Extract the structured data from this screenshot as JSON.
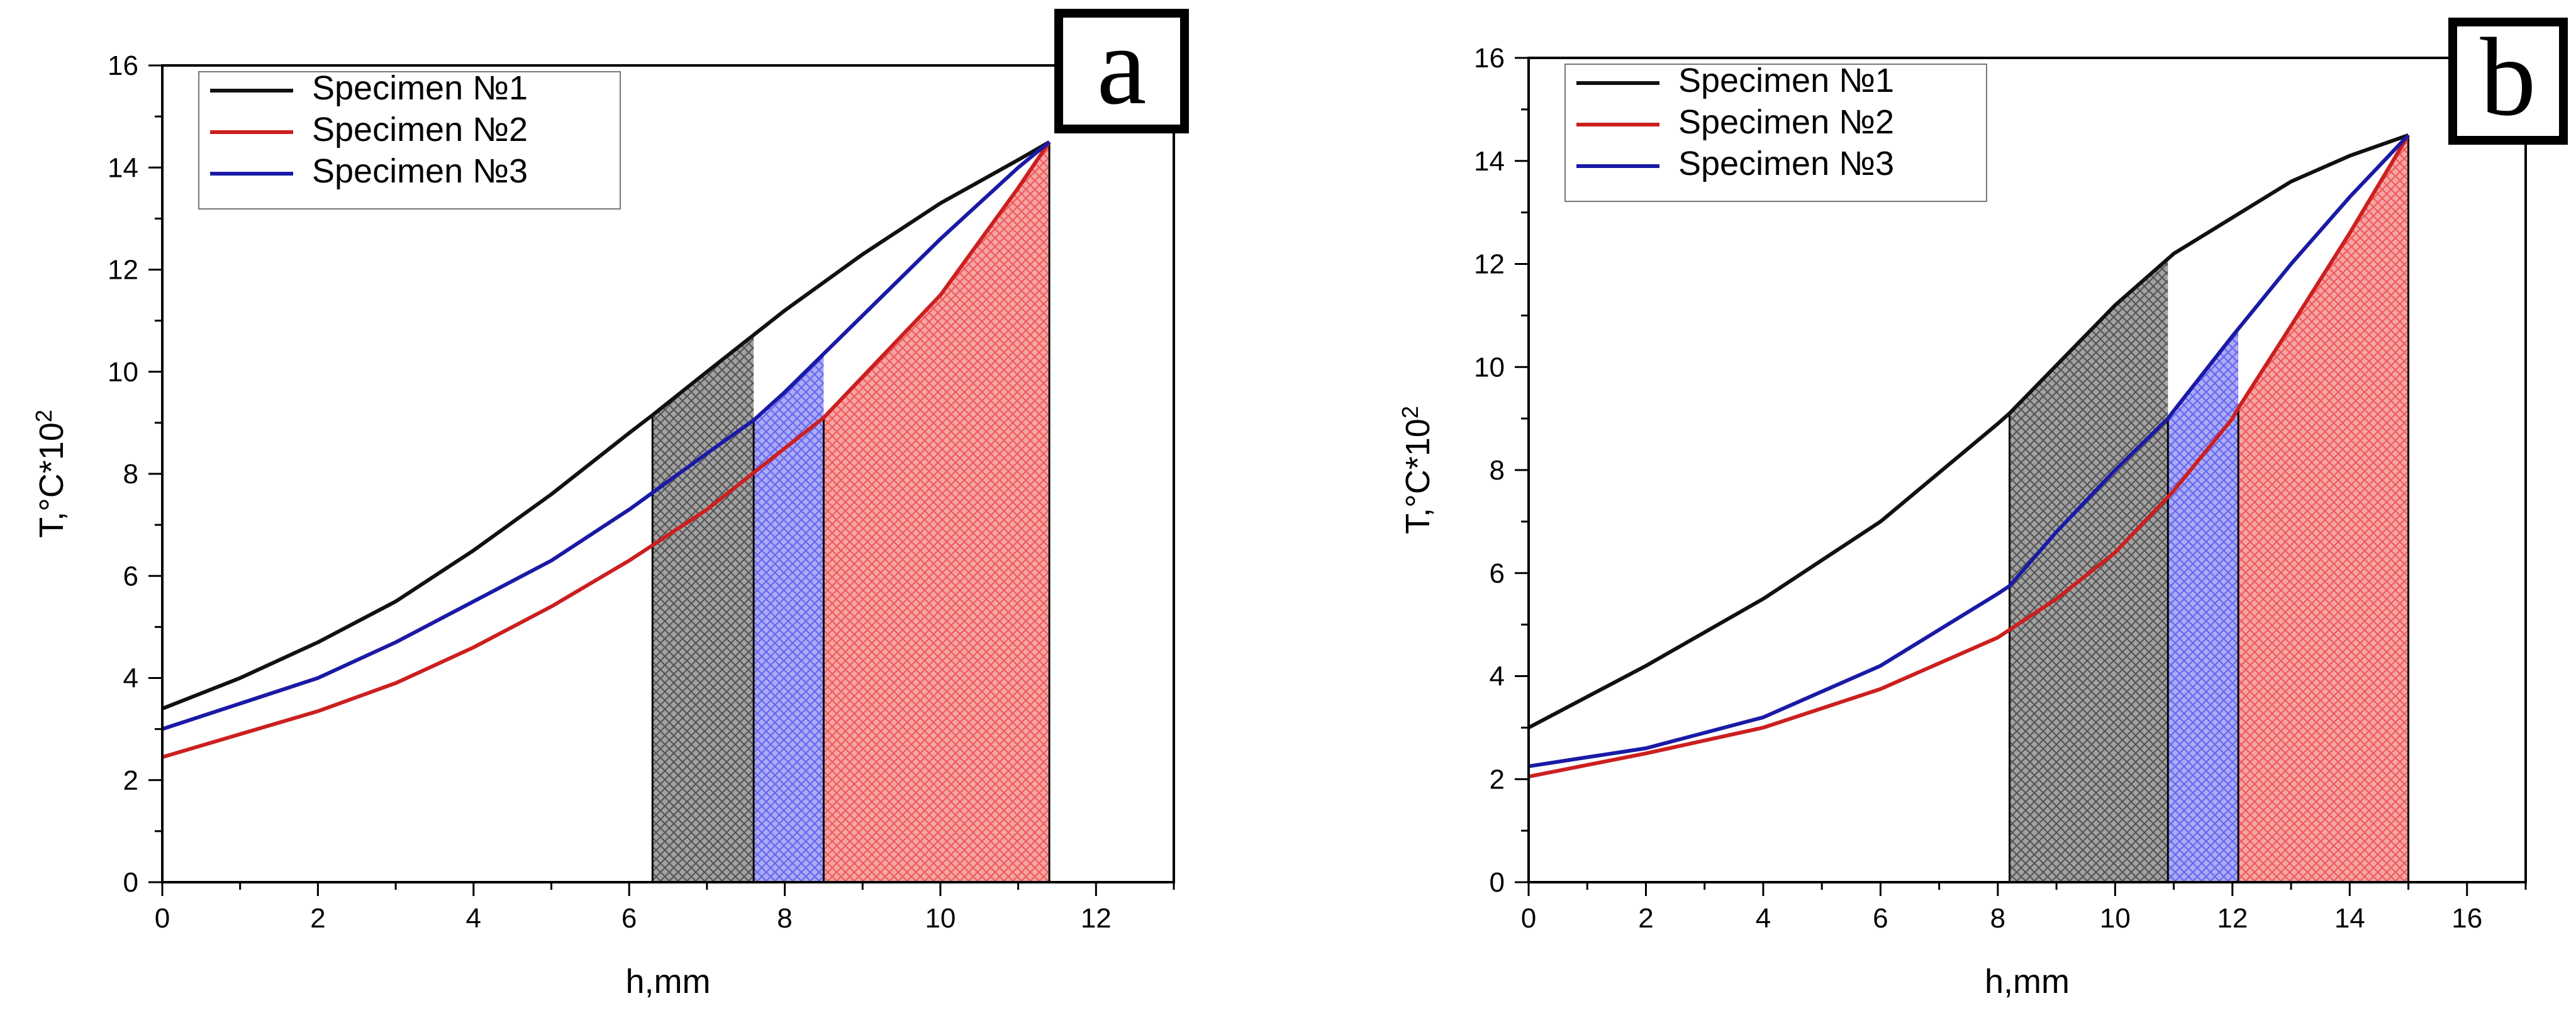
{
  "chart_data": [
    {
      "type": "line",
      "panel_label": "a",
      "xlabel": "h,mm",
      "ylabel_base": "T,°C*10",
      "ylabel_exp": "2",
      "xlim": [
        0,
        13
      ],
      "ylim": [
        0,
        16
      ],
      "xticks": [
        0,
        2,
        4,
        6,
        8,
        10,
        12
      ],
      "yticks": [
        0,
        2,
        4,
        6,
        8,
        10,
        12,
        14,
        16
      ],
      "legend_position": "top-left",
      "series": [
        {
          "name": "Specimen №1",
          "color": "#111111",
          "x": [
            0,
            1,
            2,
            3,
            4,
            5,
            6,
            6.3,
            7,
            8,
            9,
            10,
            11,
            11.4
          ],
          "y": [
            3.4,
            4.0,
            4.7,
            5.5,
            6.5,
            7.6,
            8.8,
            9.15,
            10.0,
            11.2,
            12.3,
            13.3,
            14.15,
            14.5
          ]
        },
        {
          "name": "Specimen №2",
          "color": "#cc1f1f",
          "x": [
            0,
            1,
            2,
            3,
            4,
            5,
            6,
            7,
            8,
            8.5,
            9,
            10,
            11,
            11.4
          ],
          "y": [
            2.45,
            2.9,
            3.35,
            3.9,
            4.6,
            5.4,
            6.3,
            7.3,
            8.5,
            9.1,
            9.9,
            11.5,
            13.6,
            14.5
          ]
        },
        {
          "name": "Specimen №3",
          "color": "#1a1aa6",
          "x": [
            0,
            1,
            2,
            3,
            4,
            5,
            6,
            7,
            7.6,
            8,
            9,
            10,
            11,
            11.4
          ],
          "y": [
            3.0,
            3.5,
            4.0,
            4.7,
            5.5,
            6.3,
            7.3,
            8.4,
            9.05,
            9.6,
            11.1,
            12.6,
            14.0,
            14.5
          ]
        }
      ],
      "shaded_regions": [
        {
          "series": "Specimen №1",
          "x_start": 6.3,
          "x_end": 7.6,
          "color": "#555555"
        },
        {
          "series": "Specimen №3",
          "x_start": 7.6,
          "x_end": 8.5,
          "color": "#6666ee"
        },
        {
          "series": "Specimen №2",
          "x_start": 8.5,
          "x_end": 11.4,
          "color": "#ee5a5a"
        }
      ]
    },
    {
      "type": "line",
      "panel_label": "b",
      "xlabel": "h,mm",
      "ylabel_base": "T,°C*10",
      "ylabel_exp": "2",
      "xlim": [
        0,
        17
      ],
      "ylim": [
        0,
        16
      ],
      "xticks": [
        0,
        2,
        4,
        6,
        8,
        10,
        12,
        14,
        16
      ],
      "yticks": [
        0,
        2,
        4,
        6,
        8,
        10,
        12,
        14,
        16
      ],
      "legend_position": "top-left",
      "series": [
        {
          "name": "Specimen №1",
          "color": "#111111",
          "x": [
            0,
            2,
            4,
            6,
            8,
            8.2,
            10,
            11,
            12,
            13,
            14,
            15
          ],
          "y": [
            3.0,
            4.2,
            5.5,
            7.0,
            8.9,
            9.1,
            11.2,
            12.2,
            12.9,
            13.6,
            14.1,
            14.5
          ]
        },
        {
          "name": "Specimen №2",
          "color": "#cc1f1f",
          "x": [
            0,
            2,
            4,
            6,
            8,
            9,
            10,
            11,
            12,
            12.1,
            13,
            14,
            15
          ],
          "y": [
            2.05,
            2.5,
            3.0,
            3.75,
            4.75,
            5.5,
            6.4,
            7.6,
            9.0,
            9.2,
            10.8,
            12.6,
            14.5
          ]
        },
        {
          "name": "Specimen №3",
          "color": "#1a1aa6",
          "x": [
            0,
            2,
            4,
            6,
            7,
            8,
            8.2,
            9,
            10,
            10.9,
            11,
            12,
            13,
            14,
            15
          ],
          "y": [
            2.25,
            2.6,
            3.2,
            4.2,
            4.9,
            5.6,
            5.75,
            6.8,
            8.0,
            9.0,
            9.15,
            10.6,
            12.0,
            13.3,
            14.5
          ]
        }
      ],
      "shaded_regions": [
        {
          "series": "Specimen №1",
          "x_start": 8.2,
          "x_end": 10.9,
          "color": "#555555"
        },
        {
          "series": "Specimen №3",
          "x_start": 10.9,
          "x_end": 12.1,
          "color": "#6666ee"
        },
        {
          "series": "Specimen №2",
          "x_start": 12.1,
          "x_end": 15,
          "color": "#ee5a5a"
        }
      ]
    }
  ]
}
